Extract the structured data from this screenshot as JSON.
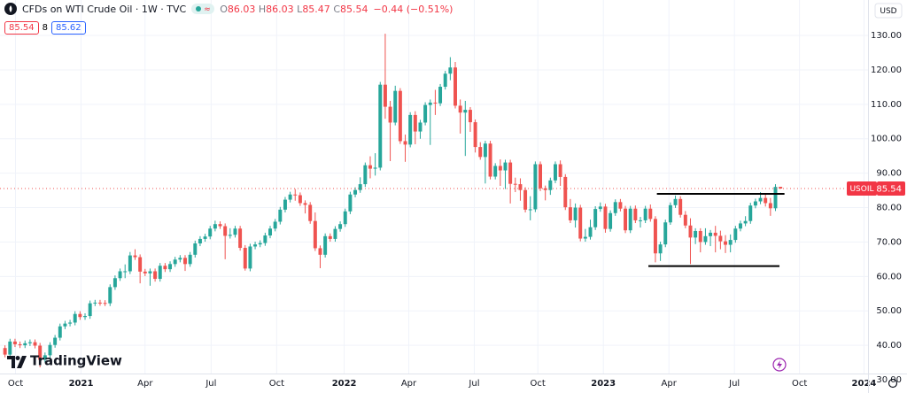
{
  "header": {
    "title": "CFDs on WTI Crude Oil · 1W · TVC",
    "ohlc": [
      {
        "label": "O",
        "value": "86.03"
      },
      {
        "label": "H",
        "value": "86.03"
      },
      {
        "label": "L",
        "value": "85.47"
      },
      {
        "label": "C",
        "value": "85.54"
      }
    ],
    "change": "−0.44 (−0.51%)",
    "bid": "85.54",
    "spread": "8",
    "ask": "85.62",
    "currency": "USD",
    "brand": "TradingView"
  },
  "chart_data": {
    "type": "candlestick",
    "up_color": "#26a69a",
    "down_color": "#ef5350",
    "grid": true,
    "xlim": [
      -1,
      172.5
    ],
    "xticks": [
      {
        "value": 2.1,
        "label": "Oct"
      },
      {
        "value": 15.2,
        "label": "2021"
      },
      {
        "value": 28,
        "label": "Apr"
      },
      {
        "value": 41.2,
        "label": "Jul"
      },
      {
        "value": 54.3,
        "label": "Oct"
      },
      {
        "value": 67.8,
        "label": "2022"
      },
      {
        "value": 80.7,
        "label": "Apr"
      },
      {
        "value": 93.8,
        "label": "Jul"
      },
      {
        "value": 106.5,
        "label": "Oct"
      },
      {
        "value": 119.6,
        "label": "2023"
      },
      {
        "value": 132.7,
        "label": "Apr"
      },
      {
        "value": 145.8,
        "label": "Jul"
      },
      {
        "value": 158.8,
        "label": "Oct"
      },
      {
        "value": 171.7,
        "label": "2024"
      }
    ],
    "ylim": [
      31.8,
      140.3
    ],
    "yticks": [
      {
        "value": 30,
        "label": "30.00"
      },
      {
        "value": 40,
        "label": "40.00"
      },
      {
        "value": 50,
        "label": "50.00"
      },
      {
        "value": 60,
        "label": "60.00"
      },
      {
        "value": 70,
        "label": "70.00"
      },
      {
        "value": 80,
        "label": "80.00"
      },
      {
        "value": 90,
        "label": "90.00"
      },
      {
        "value": 100,
        "label": "100.00"
      },
      {
        "value": 110,
        "label": "110.00"
      },
      {
        "value": 120,
        "label": "120.00"
      },
      {
        "value": 130,
        "label": "130.00"
      }
    ],
    "last_price": {
      "symbol": "USOIL",
      "value": 85.54
    },
    "hlines": [
      {
        "value": 84.0,
        "x": [
          130.3,
          155.8
        ]
      },
      {
        "value": 63.0,
        "x": [
          128.6,
          154.8
        ]
      }
    ],
    "candles": [
      [
        39.2,
        40.0,
        36.5,
        37.3
      ],
      [
        37.3,
        41.9,
        36.5,
        41.1
      ],
      [
        41.1,
        41.9,
        39.5,
        40.3
      ],
      [
        40.3,
        41.1,
        39.2,
        40.0
      ],
      [
        40.0,
        41.4,
        39.2,
        40.6
      ],
      [
        40.6,
        41.7,
        39.8,
        40.9
      ],
      [
        40.9,
        41.7,
        39.1,
        39.9
      ],
      [
        39.9,
        40.7,
        33.6,
        35.8
      ],
      [
        35.8,
        37.9,
        35.0,
        37.1
      ],
      [
        37.1,
        40.9,
        36.3,
        40.1
      ],
      [
        40.1,
        43.0,
        39.3,
        42.2
      ],
      [
        42.2,
        46.3,
        41.4,
        45.5
      ],
      [
        45.5,
        47.1,
        44.7,
        46.3
      ],
      [
        46.3,
        47.4,
        45.5,
        46.6
      ],
      [
        46.6,
        49.9,
        45.8,
        49.1
      ],
      [
        49.1,
        49.9,
        47.4,
        48.2
      ],
      [
        48.2,
        49.3,
        47.4,
        48.5
      ],
      [
        48.5,
        53.0,
        47.7,
        52.2
      ],
      [
        52.2,
        53.2,
        51.4,
        52.4
      ],
      [
        52.4,
        53.2,
        51.5,
        52.3
      ],
      [
        52.3,
        53.1,
        51.4,
        52.2
      ],
      [
        52.2,
        57.7,
        51.4,
        56.9
      ],
      [
        56.9,
        60.3,
        56.1,
        59.5
      ],
      [
        59.5,
        62.3,
        58.7,
        61.5
      ],
      [
        61.5,
        63.5,
        59.5,
        61.5
      ],
      [
        61.5,
        67.1,
        60.7,
        66.1
      ],
      [
        66.1,
        67.9,
        64.8,
        65.6
      ],
      [
        65.6,
        66.4,
        58.0,
        61.4
      ],
      [
        61.4,
        62.2,
        60.1,
        60.9
      ],
      [
        60.9,
        62.3,
        57.3,
        61.5
      ],
      [
        61.5,
        62.3,
        58.5,
        59.3
      ],
      [
        59.3,
        63.9,
        58.5,
        63.1
      ],
      [
        63.1,
        63.9,
        61.3,
        62.1
      ],
      [
        62.1,
        64.4,
        61.3,
        63.6
      ],
      [
        63.6,
        65.7,
        62.8,
        64.9
      ],
      [
        64.9,
        66.2,
        64.1,
        65.4
      ],
      [
        65.4,
        66.2,
        61.6,
        63.6
      ],
      [
        63.6,
        67.1,
        62.8,
        66.3
      ],
      [
        66.3,
        70.4,
        65.5,
        69.6
      ],
      [
        69.6,
        71.7,
        68.8,
        70.9
      ],
      [
        70.9,
        72.4,
        70.1,
        71.6
      ],
      [
        71.6,
        74.7,
        70.8,
        73.9
      ],
      [
        73.9,
        76.2,
        73.1,
        75.2
      ],
      [
        75.2,
        76.0,
        73.8,
        74.6
      ],
      [
        74.6,
        75.4,
        65.0,
        71.8
      ],
      [
        71.8,
        74.0,
        71.0,
        72.1
      ],
      [
        72.1,
        74.7,
        71.3,
        73.9
      ],
      [
        73.9,
        74.7,
        67.5,
        68.3
      ],
      [
        68.3,
        69.1,
        61.7,
        62.3
      ],
      [
        62.3,
        69.5,
        61.5,
        68.7
      ],
      [
        68.7,
        70.1,
        67.9,
        69.3
      ],
      [
        69.3,
        70.5,
        68.5,
        69.7
      ],
      [
        69.7,
        72.7,
        68.9,
        71.9
      ],
      [
        71.9,
        74.7,
        71.1,
        73.9
      ],
      [
        73.9,
        76.7,
        73.1,
        75.9
      ],
      [
        75.9,
        80.2,
        75.1,
        79.4
      ],
      [
        79.4,
        83.1,
        78.6,
        82.3
      ],
      [
        82.3,
        84.6,
        81.5,
        83.8
      ],
      [
        83.8,
        85.4,
        82.0,
        83.6
      ],
      [
        83.6,
        84.4,
        80.5,
        81.3
      ],
      [
        81.3,
        82.1,
        78.3,
        80.8
      ],
      [
        80.8,
        81.6,
        75.3,
        76.1
      ],
      [
        76.1,
        78.6,
        67.4,
        68.2
      ],
      [
        68.2,
        69.0,
        62.4,
        66.3
      ],
      [
        66.3,
        72.5,
        65.5,
        71.7
      ],
      [
        71.7,
        72.5,
        70.1,
        70.9
      ],
      [
        70.9,
        74.6,
        70.1,
        73.8
      ],
      [
        73.8,
        76.0,
        73.0,
        75.2
      ],
      [
        75.2,
        79.7,
        74.4,
        78.9
      ],
      [
        78.9,
        84.6,
        78.1,
        83.8
      ],
      [
        83.8,
        85.9,
        83.0,
        85.1
      ],
      [
        85.1,
        88.8,
        84.3,
        86.8
      ],
      [
        86.8,
        93.1,
        86.0,
        92.3
      ],
      [
        92.3,
        94.9,
        88.5,
        91.3
      ],
      [
        91.3,
        95.8,
        89.3,
        91.6
      ],
      [
        91.6,
        116.5,
        90.8,
        115.7
      ],
      [
        115.7,
        130.5,
        105.8,
        109.3
      ],
      [
        109.3,
        111.0,
        93.5,
        104.7
      ],
      [
        104.7,
        115.4,
        103.9,
        113.9
      ],
      [
        113.9,
        114.7,
        98.5,
        99.3
      ],
      [
        99.3,
        101.2,
        93.3,
        98.3
      ],
      [
        98.3,
        107.7,
        97.5,
        106.9
      ],
      [
        106.9,
        108.0,
        98.4,
        102.1
      ],
      [
        102.1,
        105.5,
        100.0,
        104.7
      ],
      [
        104.7,
        110.6,
        103.9,
        109.8
      ],
      [
        109.8,
        111.4,
        98.2,
        110.5
      ],
      [
        110.5,
        114.2,
        106.9,
        110.3
      ],
      [
        110.3,
        115.9,
        109.5,
        115.1
      ],
      [
        115.1,
        119.7,
        114.3,
        118.9
      ],
      [
        118.9,
        123.7,
        117.0,
        120.7
      ],
      [
        120.7,
        122.3,
        108.8,
        109.6
      ],
      [
        109.6,
        111.4,
        101.5,
        107.6
      ],
      [
        107.6,
        111.0,
        95.0,
        108.4
      ],
      [
        108.4,
        109.2,
        102.0,
        104.8
      ],
      [
        104.8,
        105.6,
        96.0,
        97.6
      ],
      [
        97.6,
        99.0,
        93.9,
        94.7
      ],
      [
        94.7,
        99.4,
        87.0,
        98.6
      ],
      [
        98.6,
        99.4,
        88.2,
        89.0
      ],
      [
        89.0,
        92.9,
        88.2,
        92.1
      ],
      [
        92.1,
        94.0,
        86.3,
        90.8
      ],
      [
        90.8,
        93.9,
        85.4,
        93.1
      ],
      [
        93.1,
        93.9,
        81.2,
        86.9
      ],
      [
        86.9,
        88.7,
        84.5,
        86.8
      ],
      [
        86.8,
        88.5,
        82.0,
        85.1
      ],
      [
        85.1,
        85.9,
        78.6,
        79.4
      ],
      [
        79.4,
        83.3,
        76.3,
        79.5
      ],
      [
        79.5,
        93.4,
        78.7,
        92.6
      ],
      [
        92.6,
        93.4,
        84.8,
        85.6
      ],
      [
        85.6,
        86.4,
        82.1,
        85.1
      ],
      [
        85.1,
        88.7,
        83.7,
        87.9
      ],
      [
        87.9,
        93.4,
        87.1,
        92.6
      ],
      [
        92.6,
        93.7,
        86.3,
        88.9
      ],
      [
        88.9,
        89.7,
        79.3,
        80.1
      ],
      [
        80.1,
        82.5,
        75.5,
        76.3
      ],
      [
        76.3,
        81.2,
        74.2,
        80.0
      ],
      [
        80.0,
        80.8,
        70.2,
        71.0
      ],
      [
        71.0,
        73.8,
        70.1,
        71.5
      ],
      [
        71.5,
        76.5,
        70.7,
        74.3
      ],
      [
        74.3,
        80.4,
        73.5,
        79.6
      ],
      [
        79.6,
        81.5,
        78.8,
        80.3
      ],
      [
        80.3,
        81.1,
        72.7,
        73.8
      ],
      [
        73.8,
        79.2,
        73.0,
        78.4
      ],
      [
        78.4,
        82.4,
        77.6,
        81.6
      ],
      [
        81.6,
        82.5,
        78.9,
        79.7
      ],
      [
        79.7,
        80.5,
        72.6,
        73.4
      ],
      [
        73.4,
        80.5,
        72.6,
        79.7
      ],
      [
        79.7,
        80.6,
        75.5,
        76.3
      ],
      [
        76.3,
        77.3,
        74.2,
        76.3
      ],
      [
        76.3,
        80.5,
        75.5,
        79.7
      ],
      [
        79.7,
        80.9,
        75.9,
        76.7
      ],
      [
        76.7,
        77.5,
        64.1,
        66.7
      ],
      [
        66.7,
        70.1,
        64.5,
        69.3
      ],
      [
        69.3,
        76.5,
        68.5,
        75.7
      ],
      [
        75.7,
        81.5,
        75.0,
        80.7
      ],
      [
        80.7,
        83.5,
        79.9,
        82.5
      ],
      [
        82.5,
        83.3,
        77.1,
        77.9
      ],
      [
        77.9,
        79.0,
        74.0,
        74.8
      ],
      [
        74.8,
        76.9,
        63.6,
        71.3
      ],
      [
        71.3,
        74.0,
        69.4,
        73.2
      ],
      [
        73.2,
        74.0,
        67.0,
        70.0
      ],
      [
        70.0,
        74.0,
        69.2,
        71.7
      ],
      [
        71.7,
        73.5,
        68.8,
        72.7
      ],
      [
        72.7,
        74.7,
        67.0,
        71.8
      ],
      [
        71.8,
        73.3,
        67.9,
        70.2
      ],
      [
        70.2,
        72.0,
        66.8,
        69.2
      ],
      [
        69.2,
        72.2,
        67.0,
        70.6
      ],
      [
        70.6,
        74.7,
        69.8,
        73.9
      ],
      [
        73.9,
        76.2,
        73.1,
        75.4
      ],
      [
        75.4,
        77.5,
        74.6,
        76.1
      ],
      [
        76.1,
        81.4,
        75.3,
        80.6
      ],
      [
        80.6,
        82.6,
        79.8,
        81.8
      ],
      [
        81.8,
        84.5,
        81.0,
        82.8
      ],
      [
        82.8,
        84.2,
        80.3,
        81.3
      ],
      [
        81.3,
        82.8,
        77.6,
        79.8
      ],
      [
        79.8,
        86.8,
        79.0,
        86.0
      ],
      [
        86.03,
        86.03,
        85.47,
        85.54
      ]
    ]
  }
}
